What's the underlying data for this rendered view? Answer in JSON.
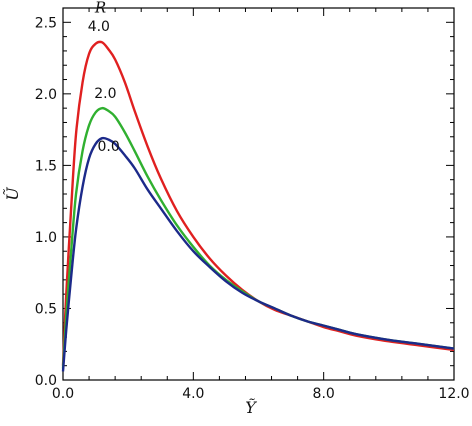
{
  "chart_data": {
    "type": "line",
    "title": "",
    "xlabel": "Ỹ",
    "ylabel": "Ũ",
    "legend_title": "R",
    "xlim": [
      0,
      12
    ],
    "ylim": [
      0,
      2.6
    ],
    "x_ticks": [
      {
        "value": 0,
        "label": "0.0"
      },
      {
        "value": 4,
        "label": "4.0"
      },
      {
        "value": 8,
        "label": "8.0"
      },
      {
        "value": 12,
        "label": "12.0"
      }
    ],
    "y_ticks": [
      {
        "value": 0,
        "label": "0.0"
      },
      {
        "value": 0.5,
        "label": "0.5"
      },
      {
        "value": 1.0,
        "label": "1.0"
      },
      {
        "value": 1.5,
        "label": "1.5"
      },
      {
        "value": 2.0,
        "label": "2.0"
      },
      {
        "value": 2.5,
        "label": "2.5"
      }
    ],
    "grid": false,
    "series": [
      {
        "label": "4.0",
        "color": "#e02020",
        "x": [
          0,
          0.1,
          0.25,
          0.4,
          0.6,
          0.8,
          1.0,
          1.2,
          1.4,
          1.6,
          1.9,
          2.2,
          2.6,
          3.0,
          3.5,
          4.0,
          4.5,
          5.0,
          5.5,
          6.0,
          6.5,
          7.0,
          7.5,
          8.0,
          8.5,
          9.0,
          10.0,
          11.0,
          12.0
        ],
        "values": [
          0.1,
          0.6,
          1.2,
          1.72,
          2.08,
          2.28,
          2.35,
          2.36,
          2.31,
          2.24,
          2.08,
          1.88,
          1.63,
          1.41,
          1.18,
          1.0,
          0.85,
          0.73,
          0.63,
          0.55,
          0.49,
          0.45,
          0.41,
          0.37,
          0.34,
          0.31,
          0.27,
          0.24,
          0.21
        ]
      },
      {
        "label": "2.0",
        "color": "#30b030",
        "x": [
          0,
          0.1,
          0.25,
          0.4,
          0.6,
          0.8,
          1.0,
          1.2,
          1.4,
          1.6,
          1.9,
          2.2,
          2.6,
          3.0,
          3.5,
          4.0,
          4.5,
          5.0,
          5.5,
          6.0,
          6.5,
          7.0,
          7.5,
          8.0,
          8.5,
          9.0,
          10.0,
          11.0,
          12.0
        ],
        "values": [
          0.08,
          0.45,
          0.9,
          1.3,
          1.6,
          1.78,
          1.87,
          1.9,
          1.88,
          1.84,
          1.73,
          1.6,
          1.42,
          1.26,
          1.08,
          0.93,
          0.8,
          0.7,
          0.62,
          0.55,
          0.5,
          0.45,
          0.41,
          0.38,
          0.35,
          0.32,
          0.28,
          0.25,
          0.22
        ]
      },
      {
        "label": "0.0",
        "color": "#1c2a8a",
        "x": [
          0,
          0.1,
          0.25,
          0.4,
          0.6,
          0.8,
          1.0,
          1.2,
          1.4,
          1.6,
          1.9,
          2.2,
          2.6,
          3.0,
          3.5,
          4.0,
          4.5,
          5.0,
          5.5,
          6.0,
          6.5,
          7.0,
          7.5,
          8.0,
          8.5,
          9.0,
          10.0,
          11.0,
          12.0
        ],
        "values": [
          0.06,
          0.35,
          0.72,
          1.05,
          1.35,
          1.55,
          1.65,
          1.69,
          1.68,
          1.65,
          1.57,
          1.48,
          1.33,
          1.2,
          1.04,
          0.9,
          0.79,
          0.69,
          0.61,
          0.55,
          0.5,
          0.45,
          0.41,
          0.38,
          0.35,
          0.32,
          0.28,
          0.25,
          0.22
        ]
      }
    ]
  }
}
